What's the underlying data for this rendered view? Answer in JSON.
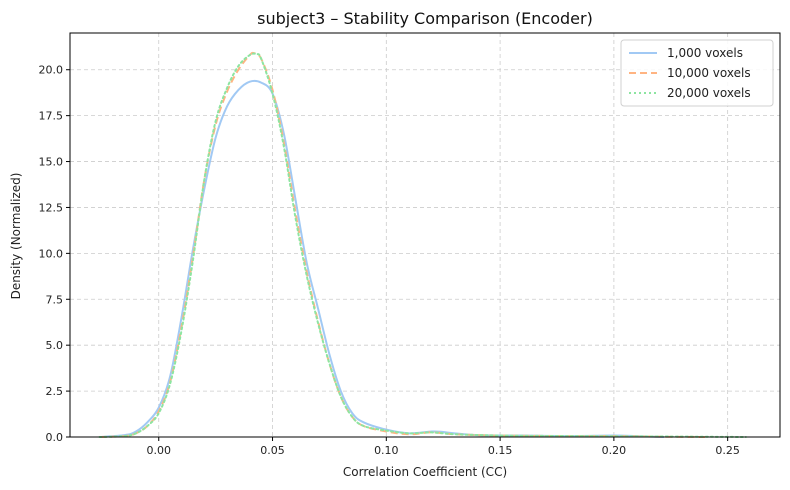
{
  "chart_data": {
    "type": "line",
    "title": "subject3 – Stability Comparison (Encoder)",
    "xlabel": "Correlation Coefficient (CC)",
    "ylabel": "Density (Normalized)",
    "xlim": [
      -0.039,
      0.273
    ],
    "ylim": [
      0,
      22
    ],
    "xticks": [
      0.0,
      0.05,
      0.1,
      0.15,
      0.2,
      0.25
    ],
    "xtick_labels": [
      "0.00",
      "0.05",
      "0.10",
      "0.15",
      "0.20",
      "0.25"
    ],
    "yticks": [
      0.0,
      2.5,
      5.0,
      7.5,
      10.0,
      12.5,
      15.0,
      17.5,
      20.0
    ],
    "ytick_labels": [
      "0.0",
      "2.5",
      "5.0",
      "7.5",
      "10.0",
      "12.5",
      "15.0",
      "17.5",
      "20.0"
    ],
    "grid": true,
    "legend_position": "top-right",
    "series": [
      {
        "name": "1,000 voxels",
        "color": "#a1c9f4",
        "dash": "solid",
        "x": [
          -0.026,
          -0.015,
          -0.01,
          -0.005,
          0.0,
          0.005,
          0.01,
          0.015,
          0.02,
          0.025,
          0.03,
          0.035,
          0.04,
          0.045,
          0.05,
          0.055,
          0.06,
          0.065,
          0.07,
          0.075,
          0.08,
          0.085,
          0.09,
          0.1,
          0.11,
          0.12,
          0.125,
          0.13,
          0.14,
          0.16,
          0.18,
          0.2,
          0.21,
          0.222
        ],
        "y": [
          0.0,
          0.1,
          0.3,
          0.8,
          1.6,
          3.3,
          6.5,
          10.2,
          13.5,
          16.3,
          18.0,
          18.9,
          19.35,
          19.3,
          18.7,
          16.5,
          13.0,
          9.5,
          7.0,
          4.5,
          2.5,
          1.3,
          0.8,
          0.4,
          0.2,
          0.3,
          0.27,
          0.2,
          0.1,
          0.08,
          0.05,
          0.08,
          0.05,
          0.0
        ]
      },
      {
        "name": "10,000 voxels",
        "color": "#ffb482",
        "dash": "dashed",
        "x": [
          -0.026,
          -0.015,
          -0.01,
          -0.005,
          0.0,
          0.005,
          0.01,
          0.015,
          0.02,
          0.025,
          0.03,
          0.035,
          0.04,
          0.042,
          0.045,
          0.05,
          0.055,
          0.06,
          0.065,
          0.07,
          0.075,
          0.08,
          0.085,
          0.09,
          0.1,
          0.11,
          0.12,
          0.13,
          0.15,
          0.18,
          0.2,
          0.22,
          0.24
        ],
        "y": [
          0.0,
          0.05,
          0.2,
          0.6,
          1.4,
          3.0,
          6.0,
          9.8,
          14.0,
          17.0,
          18.8,
          20.0,
          20.8,
          20.9,
          20.6,
          18.9,
          16.0,
          12.3,
          9.0,
          6.3,
          4.0,
          2.2,
          1.1,
          0.6,
          0.3,
          0.15,
          0.25,
          0.15,
          0.08,
          0.05,
          0.05,
          0.02,
          0.0
        ]
      },
      {
        "name": "20,000 voxels",
        "color": "#8de5a1",
        "dash": "dotted",
        "x": [
          -0.026,
          -0.015,
          -0.01,
          -0.005,
          0.0,
          0.005,
          0.01,
          0.015,
          0.02,
          0.025,
          0.03,
          0.035,
          0.04,
          0.043,
          0.045,
          0.05,
          0.055,
          0.06,
          0.065,
          0.07,
          0.075,
          0.08,
          0.085,
          0.09,
          0.1,
          0.11,
          0.12,
          0.13,
          0.15,
          0.18,
          0.2,
          0.23,
          0.258
        ],
        "y": [
          0.0,
          0.05,
          0.2,
          0.6,
          1.3,
          2.9,
          5.8,
          9.6,
          14.0,
          17.2,
          19.0,
          20.2,
          20.8,
          20.85,
          20.6,
          18.7,
          15.8,
          12.0,
          8.8,
          6.2,
          4.0,
          2.2,
          1.1,
          0.6,
          0.35,
          0.2,
          0.25,
          0.15,
          0.08,
          0.05,
          0.04,
          0.02,
          0.0
        ]
      }
    ]
  }
}
